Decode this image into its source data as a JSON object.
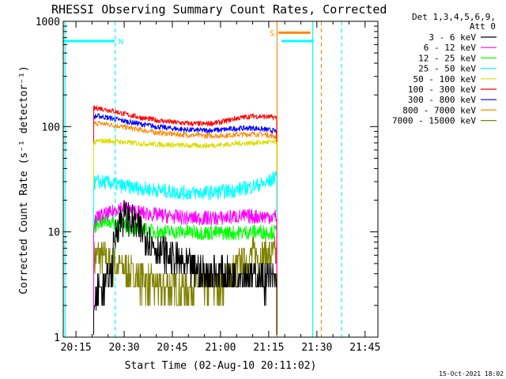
{
  "chart_data": {
    "type": "line",
    "title": "RHESSI Observing Summary Count Rates, Corrected",
    "xlabel": "Start Time (02-Aug-10 20:11:02)",
    "ylabel": "Corrected Count Rate (s⁻¹ detector⁻¹)",
    "yscale": "log",
    "ylim": [
      1,
      1000
    ],
    "xlim": [
      "20:11:02",
      "21:49:00"
    ],
    "x_ticks": [
      "20:15",
      "20:30",
      "20:45",
      "21:00",
      "21:15",
      "21:30",
      "21:45"
    ],
    "y_ticks": [
      "1",
      "10",
      "100",
      "1000"
    ],
    "legend_header": [
      "Det 1,3,4,5,6,9,",
      "Att 0"
    ],
    "legend_placement": "right",
    "timestamp": "15-Oct-2021 18:02",
    "x_unit": "minutes after 20:00",
    "series": [
      {
        "name": "3 - 6 keV",
        "color": "#000000",
        "x": [
          20.5,
          22,
          24,
          26,
          28,
          30,
          32,
          34,
          36,
          38,
          40,
          45,
          50,
          55,
          60,
          65,
          70,
          72,
          74,
          76,
          77.5
        ],
        "y": [
          1.2,
          3,
          3,
          4,
          12,
          14,
          13,
          11,
          10,
          8,
          7,
          5.5,
          4.5,
          4,
          4,
          3.8,
          3.8,
          3.6,
          3.6,
          3.5,
          3.5
        ]
      },
      {
        "name": "6 - 12 keV",
        "color": "#ff00ff",
        "x": [
          20.5,
          22,
          26,
          28,
          30,
          32,
          36,
          40,
          45,
          50,
          55,
          60,
          65,
          70,
          74,
          77.5
        ],
        "y": [
          12,
          14,
          15,
          17,
          17,
          16,
          15,
          14.5,
          14,
          13.5,
          13.5,
          13.5,
          14,
          14,
          14,
          14
        ]
      },
      {
        "name": "12 - 25 keV",
        "color": "#00ff00",
        "x": [
          20.5,
          22,
          26,
          28,
          30,
          32,
          36,
          40,
          45,
          50,
          55,
          60,
          65,
          70,
          74,
          77.5
        ],
        "y": [
          11,
          12.5,
          12.5,
          12,
          11.5,
          11,
          10.5,
          10,
          10,
          10,
          9.8,
          9.8,
          9.8,
          10,
          10,
          10
        ]
      },
      {
        "name": "25 - 50 keV",
        "color": "#00ffff",
        "x": [
          20.5,
          22,
          26,
          30,
          35,
          40,
          45,
          50,
          55,
          60,
          65,
          70,
          74,
          76,
          77.5
        ],
        "y": [
          29,
          30,
          29,
          27,
          26,
          25,
          24,
          23.5,
          23.5,
          24,
          25,
          27,
          29,
          31,
          36
        ]
      },
      {
        "name": "50 - 100 keV",
        "color": "#dddd00",
        "x": [
          20.5,
          22,
          26,
          30,
          35,
          40,
          45,
          50,
          55,
          60,
          65,
          70,
          74,
          77.5
        ],
        "y": [
          70,
          73,
          73,
          71,
          69,
          68,
          67,
          66,
          66,
          67,
          69,
          70,
          71,
          71
        ]
      },
      {
        "name": "100 - 300 keV",
        "color": "#ff0000",
        "x": [
          20.5,
          22,
          26,
          30,
          35,
          40,
          45,
          50,
          55,
          60,
          65,
          70,
          74,
          77.5
        ],
        "y": [
          148,
          150,
          142,
          132,
          122,
          115,
          110,
          107,
          106,
          110,
          120,
          126,
          124,
          122
        ]
      },
      {
        "name": "300 - 800 keV",
        "color": "#0000ff",
        "x": [
          20.5,
          22,
          26,
          30,
          35,
          40,
          45,
          50,
          55,
          60,
          65,
          70,
          74,
          77.5
        ],
        "y": [
          124,
          126,
          120,
          113,
          106,
          100,
          96,
          93,
          92,
          93,
          96,
          97,
          94,
          90
        ]
      },
      {
        "name": "800 - 7000 keV",
        "color": "#ff8800",
        "x": [
          20.5,
          22,
          26,
          30,
          35,
          40,
          45,
          50,
          55,
          60,
          65,
          70,
          74,
          77.5
        ],
        "y": [
          106,
          108,
          104,
          99,
          93,
          88,
          85,
          83,
          82,
          82,
          84,
          85,
          84,
          80
        ]
      },
      {
        "name": "7000 - 15000 keV",
        "color": "#808000",
        "x": [
          20.5,
          22,
          26,
          30,
          35,
          40,
          45,
          50,
          55,
          60,
          65,
          70,
          74,
          77.5
        ],
        "y": [
          5.5,
          6,
          5,
          4.5,
          3.5,
          3,
          3,
          3,
          3,
          3.2,
          4.5,
          6,
          6,
          6
        ]
      }
    ],
    "flags": [
      {
        "label": "N",
        "color": "#00ffff",
        "x_start": 11.03,
        "x_end": 27,
        "level": 650,
        "labeled": true
      },
      {
        "label": "",
        "color": "#00ffff",
        "x_start": 77.5,
        "x_end": 77.7,
        "level": 650,
        "labeled": false
      },
      {
        "label": "",
        "color": "#00ffff",
        "x_start": 79,
        "x_end": 89,
        "level": 650,
        "labeled": false
      },
      {
        "label": "S",
        "color": "#ff8800",
        "x_start": 78,
        "x_end": 88,
        "level": 780,
        "labeled": true
      }
    ],
    "vlines": [
      {
        "x": 11.6,
        "color": "#00ffff",
        "style": "solid"
      },
      {
        "x": 27.2,
        "color": "#00ffff",
        "style": "dashed"
      },
      {
        "x": 77.6,
        "color": "#ff8800",
        "style": "solid"
      },
      {
        "x": 88.7,
        "color": "#00ffff",
        "style": "solid"
      },
      {
        "x": 91.4,
        "color": "#ff8800",
        "style": "dashed"
      },
      {
        "x": 97.7,
        "color": "#00ffff",
        "style": "dashed"
      }
    ]
  }
}
